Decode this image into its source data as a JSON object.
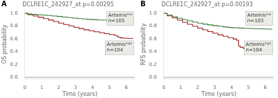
{
  "chart_data": [
    {
      "type": "line",
      "panel_label": "A",
      "title": "DCLRE1C_242927_at p=0.00295",
      "x_label": "Time (years)",
      "y_label": "OS probability",
      "xlim": [
        0,
        6.5
      ],
      "xticks": [
        0,
        1,
        2,
        3,
        4,
        5,
        6
      ],
      "ylim": [
        -0.02,
        1.05
      ],
      "yticks": [
        {
          "value": 0,
          "label": "0.0"
        },
        0.2,
        0.4,
        0.6,
        0.8,
        {
          "value": 1,
          "label": "1.0"
        }
      ],
      "grid": false,
      "series": [
        {
          "color": "#3a7a3a",
          "line_style": "step",
          "x": [
            0,
            0.15,
            0.4,
            0.7,
            1.0,
            1.3,
            1.6,
            1.9,
            2.2,
            2.5,
            2.8,
            3.1,
            3.4,
            3.7,
            4.0,
            4.3,
            4.6,
            4.9,
            5.2,
            5.5,
            5.8,
            6.1,
            6.4
          ],
          "values": [
            1.0,
            0.99,
            0.985,
            0.978,
            0.972,
            0.966,
            0.958,
            0.952,
            0.942,
            0.935,
            0.926,
            0.918,
            0.912,
            0.906,
            0.9,
            0.896,
            0.893,
            0.891,
            0.889,
            0.887,
            0.886,
            0.885,
            0.885
          ]
        },
        {
          "color": "#9b2020",
          "line_style": "step",
          "x": [
            0,
            0.2,
            0.5,
            0.8,
            1.1,
            1.4,
            1.7,
            2.0,
            2.3,
            2.6,
            2.9,
            3.2,
            3.5,
            3.8,
            4.1,
            4.4,
            4.7,
            5.0,
            5.3,
            5.45,
            5.55,
            5.65,
            5.8,
            6.1,
            6.4
          ],
          "values": [
            1.0,
            0.978,
            0.958,
            0.938,
            0.918,
            0.895,
            0.872,
            0.848,
            0.825,
            0.803,
            0.782,
            0.762,
            0.743,
            0.727,
            0.712,
            0.697,
            0.682,
            0.668,
            0.655,
            0.635,
            0.625,
            0.618,
            0.61,
            0.608,
            0.608
          ]
        }
      ],
      "hlines": [
        {
          "y": 0,
          "color": "gray"
        }
      ],
      "annotations": [
        "Artemisˡᵒʷ\nn=103",
        "Artemisʰⁱᵍʰ\nn=104"
      ]
    },
    {
      "type": "line",
      "panel_label": "B",
      "title": "DCLRE1C_242927_at p=0.00193",
      "x_label": "Time (years)",
      "y_label": "RFS probability",
      "xlim": [
        0,
        6.5
      ],
      "xticks": [
        0,
        1,
        2,
        3,
        4,
        5,
        6
      ],
      "ylim": [
        -0.02,
        1.05
      ],
      "yticks": [
        {
          "value": 0,
          "label": "0.0"
        },
        0.2,
        0.4,
        0.6,
        0.8,
        {
          "value": 1,
          "label": "1.0"
        }
      ],
      "grid": false,
      "series": [
        {
          "color": "#3a7a3a",
          "line_style": "step",
          "x": [
            0,
            0.2,
            0.5,
            0.8,
            1.1,
            1.4,
            1.7,
            2.0,
            2.3,
            2.6,
            2.9,
            3.2,
            3.5,
            3.7,
            3.9,
            4.1,
            4.4,
            4.7,
            5.0,
            5.3,
            5.6,
            5.9,
            6.2,
            6.4
          ],
          "values": [
            1.0,
            0.972,
            0.948,
            0.924,
            0.902,
            0.882,
            0.863,
            0.847,
            0.832,
            0.819,
            0.808,
            0.798,
            0.789,
            0.783,
            0.778,
            0.774,
            0.77,
            0.766,
            0.763,
            0.76,
            0.757,
            0.754,
            0.752,
            0.752
          ]
        },
        {
          "color": "#9b2020",
          "line_style": "step",
          "x": [
            0,
            0.2,
            0.5,
            0.8,
            1.1,
            1.4,
            1.7,
            2.0,
            2.3,
            2.6,
            2.9,
            3.2,
            3.5,
            3.8,
            4.1,
            4.3,
            4.42,
            4.52,
            4.7,
            4.9,
            5.1,
            5.4,
            5.7,
            6.0,
            6.4
          ],
          "values": [
            1.0,
            0.962,
            0.928,
            0.894,
            0.861,
            0.828,
            0.798,
            0.769,
            0.741,
            0.714,
            0.689,
            0.664,
            0.641,
            0.619,
            0.598,
            0.578,
            0.488,
            0.468,
            0.452,
            0.443,
            0.437,
            0.432,
            0.428,
            0.426,
            0.426
          ]
        }
      ],
      "hlines": [
        {
          "y": 0,
          "color": "gray"
        }
      ],
      "annotations": [
        "Artemisˡᵒʷ\nn=103",
        "Artemisʰⁱᵍʰ\nn=104"
      ]
    }
  ]
}
